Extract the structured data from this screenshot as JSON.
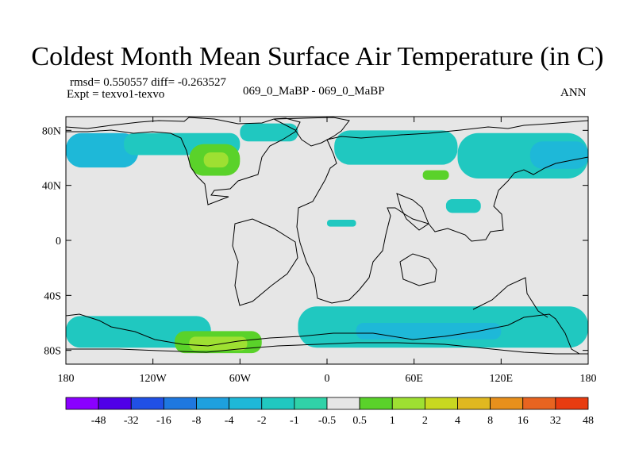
{
  "title": "Coldest Month Mean Surface Air Temperature (in C)",
  "stats": {
    "rmsd_label": "rmsd= 0.550557",
    "diff_label": "diff= -0.263527"
  },
  "experiment": "Expt = texvo1-texvo",
  "subtitle": "069_0_MaBP - 069_0_MaBP",
  "season": "ANN",
  "map": {
    "projection": "cylindrical-equidistant",
    "lon_range": [
      -180,
      180
    ],
    "lat_range": [
      -90,
      90
    ],
    "x_ticks": [
      {
        "value": -180,
        "label": "180"
      },
      {
        "value": -120,
        "label": "120W"
      },
      {
        "value": -60,
        "label": "60W"
      },
      {
        "value": 0,
        "label": "0"
      },
      {
        "value": 60,
        "label": "60E"
      },
      {
        "value": 120,
        "label": "120E"
      },
      {
        "value": 180,
        "label": "180"
      }
    ],
    "y_ticks": [
      {
        "value": 80,
        "label": "80N"
      },
      {
        "value": 40,
        "label": "40N"
      },
      {
        "value": 0,
        "label": "0"
      },
      {
        "value": -40,
        "label": "40S"
      },
      {
        "value": -80,
        "label": "80S"
      }
    ],
    "background_color": "#e6e6e6",
    "field_regions": [
      {
        "name": "arctic-band-west",
        "color": "#1eb8d8",
        "lon": [
          -180,
          -130
        ],
        "lat": [
          53,
          78
        ]
      },
      {
        "name": "arctic-band-central",
        "color": "#20c8c0",
        "lon": [
          -140,
          -60
        ],
        "lat": [
          62,
          78
        ]
      },
      {
        "name": "north-america-warm-spot",
        "color": "#5ad22a",
        "lon": [
          -95,
          -60
        ],
        "lat": [
          47,
          70
        ]
      },
      {
        "name": "north-america-warm-core",
        "color": "#9ee032",
        "lon": [
          -85,
          -68
        ],
        "lat": [
          53,
          64
        ]
      },
      {
        "name": "greenland-cool",
        "color": "#20c8c0",
        "lon": [
          -60,
          -20
        ],
        "lat": [
          72,
          85
        ]
      },
      {
        "name": "europe-cool",
        "color": "#20c8c0",
        "lon": [
          5,
          90
        ],
        "lat": [
          55,
          80
        ]
      },
      {
        "name": "siberia-cool",
        "color": "#20c8c0",
        "lon": [
          90,
          180
        ],
        "lat": [
          45,
          78
        ]
      },
      {
        "name": "siberia-cold-core",
        "color": "#1eb8d8",
        "lon": [
          140,
          180
        ],
        "lat": [
          52,
          72
        ]
      },
      {
        "name": "central-asia-warm",
        "color": "#5ad22a",
        "lon": [
          66,
          84
        ],
        "lat": [
          44,
          51
        ]
      },
      {
        "name": "asia-cool-patch",
        "color": "#20c8c0",
        "lon": [
          82,
          106
        ],
        "lat": [
          20,
          30
        ]
      },
      {
        "name": "africa-patch",
        "color": "#20c8c0",
        "lon": [
          0,
          20
        ],
        "lat": [
          10,
          15
        ]
      },
      {
        "name": "southern-ocean-cool-west",
        "color": "#20c8c0",
        "lon": [
          -180,
          -80
        ],
        "lat": [
          -78,
          -55
        ]
      },
      {
        "name": "southern-ocean-cool-east",
        "color": "#20c8c0",
        "lon": [
          -20,
          180
        ],
        "lat": [
          -78,
          -48
        ]
      },
      {
        "name": "southern-ocean-cold-core",
        "color": "#1eb8d8",
        "lon": [
          20,
          120
        ],
        "lat": [
          -72,
          -60
        ]
      },
      {
        "name": "antarctic-warm-patch",
        "color": "#5ad22a",
        "lon": [
          -105,
          -45
        ],
        "lat": [
          -82,
          -66
        ]
      },
      {
        "name": "antarctic-warm-core",
        "color": "#9ee032",
        "lon": [
          -95,
          -55
        ],
        "lat": [
          -80,
          -70
        ]
      }
    ]
  },
  "colorbar": {
    "label": "temperature-difference-colorbar",
    "colors": [
      "#8a00ff",
      "#5000e8",
      "#2050e6",
      "#1e78e0",
      "#1ea0de",
      "#1eb8d8",
      "#20c8c0",
      "#30d2a8",
      "#e6e6e6",
      "#5ad22a",
      "#9ee032",
      "#c8d820",
      "#e0b820",
      "#e8901c",
      "#e86420",
      "#e83c10"
    ],
    "labels": [
      "-48",
      "-32",
      "-16",
      "-8",
      "-4",
      "-2",
      "-1",
      "-0.5",
      "0.5",
      "1",
      "2",
      "4",
      "8",
      "16",
      "32",
      "48"
    ]
  }
}
